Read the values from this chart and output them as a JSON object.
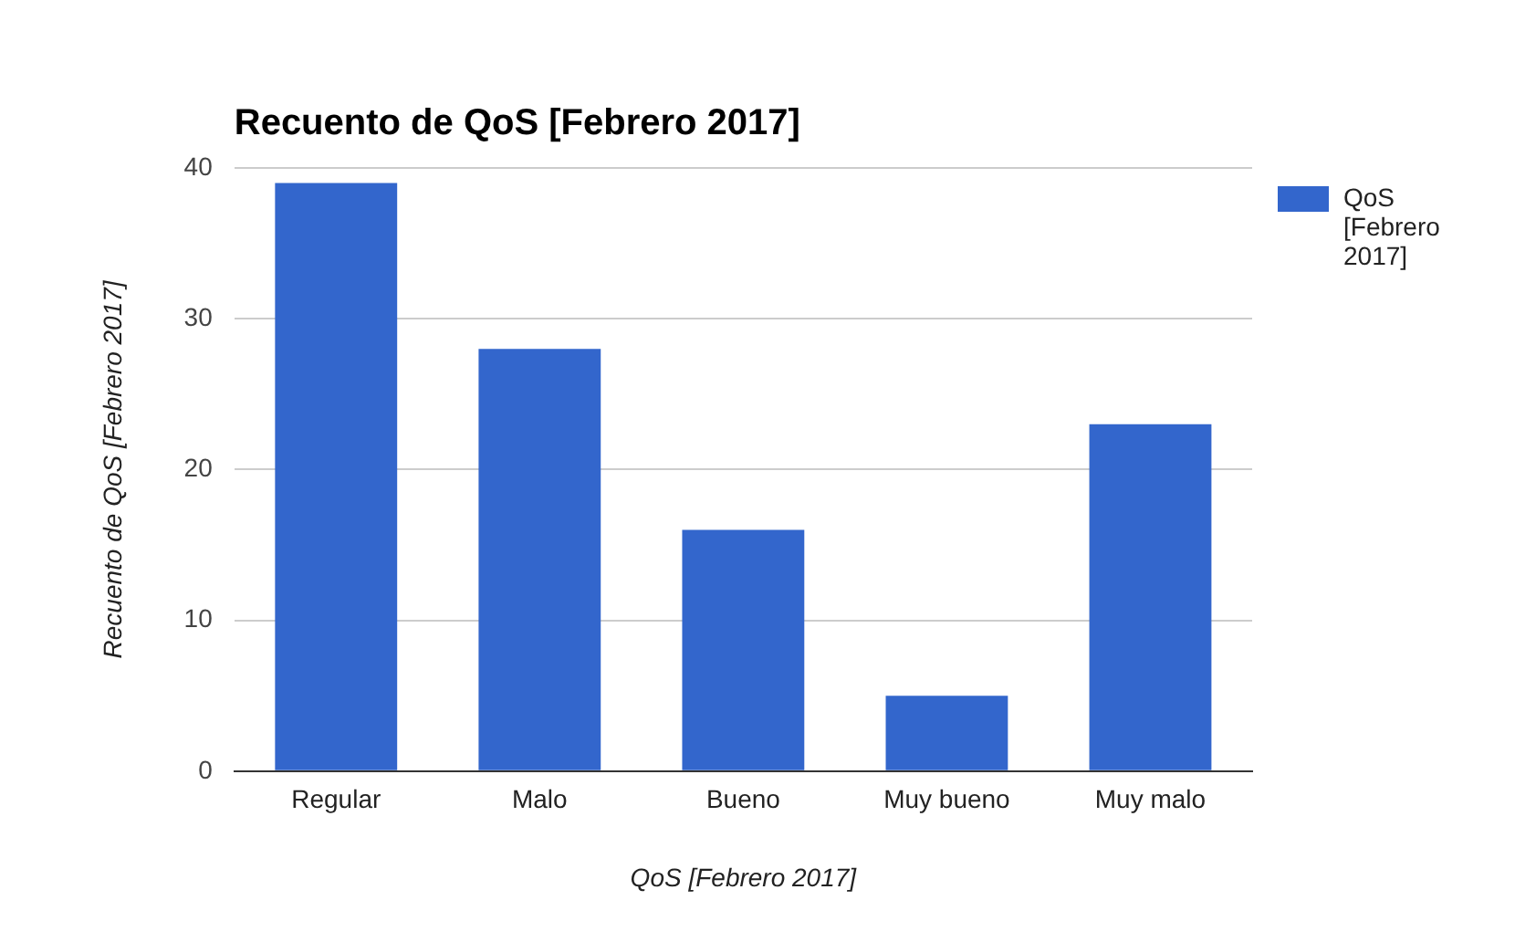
{
  "chart_data": {
    "type": "bar",
    "title": "Recuento de QoS [Febrero 2017]",
    "xlabel": "QoS [Febrero 2017]",
    "ylabel": "Recuento de QoS [Febrero 2017]",
    "categories": [
      "Regular",
      "Malo",
      "Bueno",
      "Muy bueno",
      "Muy malo"
    ],
    "series": [
      {
        "name": "QoS [Febrero 2017]",
        "color": "#3366cc",
        "values": [
          39,
          28,
          16,
          5,
          23
        ]
      }
    ],
    "ylim": [
      0,
      40
    ],
    "yticks": [
      0,
      10,
      20,
      30,
      40
    ],
    "grid": "y",
    "legend": "top right"
  }
}
